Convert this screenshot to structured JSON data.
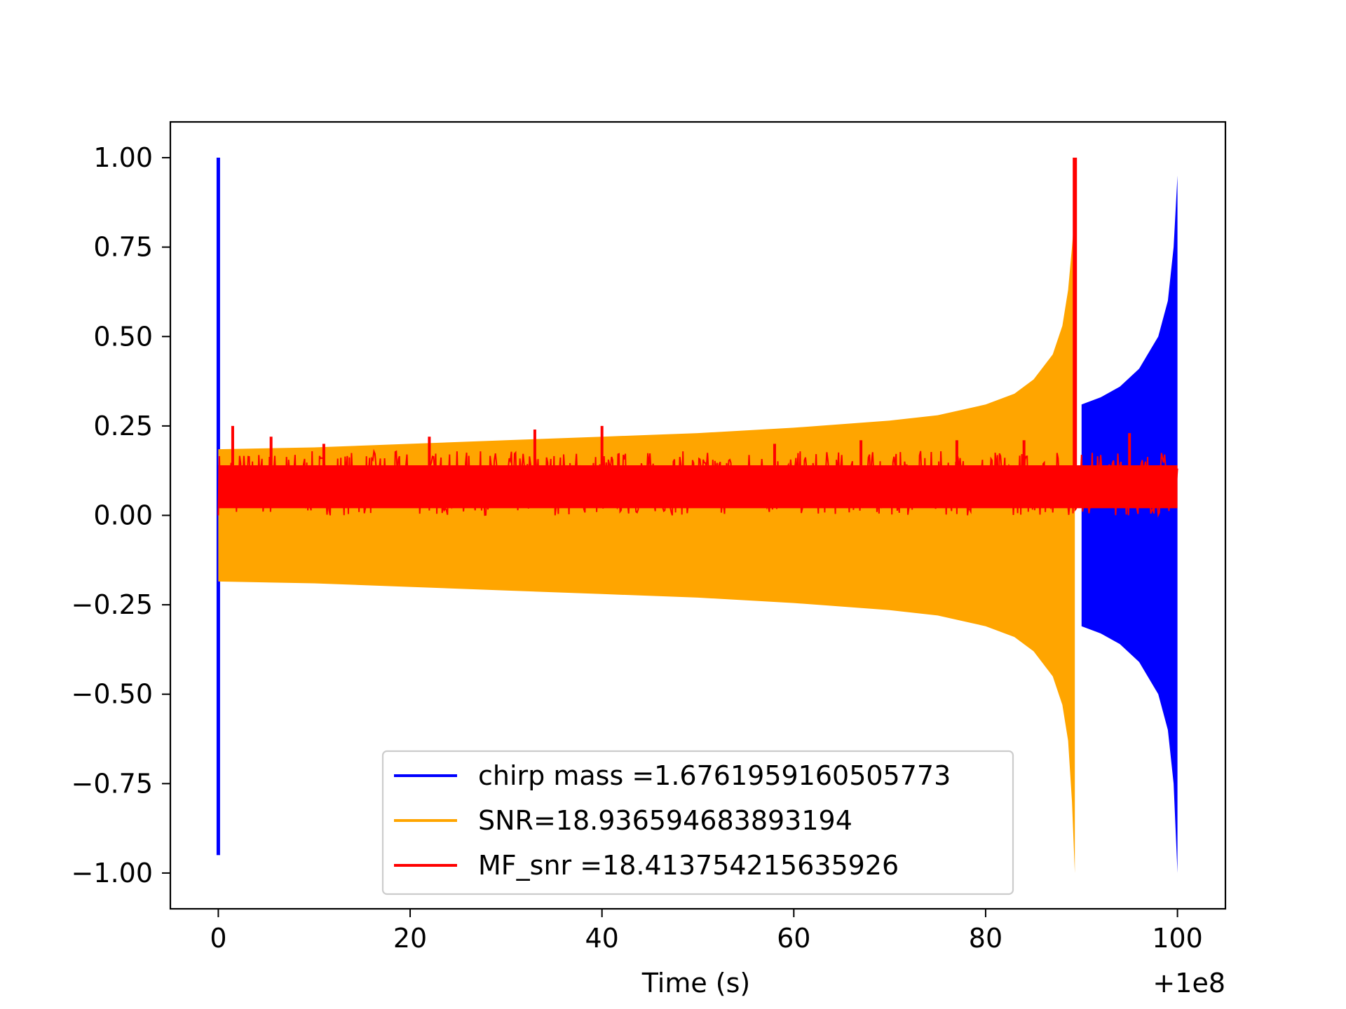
{
  "chart_data": {
    "type": "line",
    "title": "",
    "xlabel": "Time (s)",
    "ylabel": "",
    "x_offset_label": "+1e8",
    "xlim": [
      -5,
      105
    ],
    "ylim": [
      -1.1,
      1.1
    ],
    "xticks": [
      0,
      20,
      40,
      60,
      80,
      100
    ],
    "xtick_labels": [
      "0",
      "20",
      "40",
      "60",
      "80",
      "100"
    ],
    "yticks": [
      1.0,
      0.75,
      0.5,
      0.25,
      0.0,
      -0.25,
      -0.5,
      -0.75,
      -1.0
    ],
    "ytick_labels": [
      "1.00",
      "0.75",
      "0.50",
      "0.25",
      "0.00",
      "−0.25",
      "−0.50",
      "−0.75",
      "−1.00"
    ],
    "grid": false,
    "legend_position": "lower-center",
    "series": [
      {
        "name": "chirp mass =1.6761959160505773",
        "color": "#0000ff",
        "start_spike": {
          "x": 0,
          "max": 1.0,
          "min": -0.95
        },
        "upper_envelope": [
          [
            90.0,
            0.31
          ],
          [
            92.0,
            0.33
          ],
          [
            94.0,
            0.36
          ],
          [
            96.0,
            0.41
          ],
          [
            98.0,
            0.5
          ],
          [
            99.0,
            0.6
          ],
          [
            99.6,
            0.75
          ],
          [
            100.0,
            0.95
          ]
        ],
        "lower_envelope": [
          [
            90.0,
            -0.31
          ],
          [
            92.0,
            -0.33
          ],
          [
            94.0,
            -0.36
          ],
          [
            96.0,
            -0.41
          ],
          [
            98.0,
            -0.5
          ],
          [
            99.0,
            -0.6
          ],
          [
            99.6,
            -0.75
          ],
          [
            100.0,
            -1.0
          ]
        ]
      },
      {
        "name": "SNR=18.936594683893194",
        "color": "#ffa500",
        "upper_envelope": [
          [
            0,
            0.185
          ],
          [
            10,
            0.19
          ],
          [
            20,
            0.2
          ],
          [
            30,
            0.21
          ],
          [
            40,
            0.22
          ],
          [
            50,
            0.23
          ],
          [
            60,
            0.245
          ],
          [
            70,
            0.265
          ],
          [
            75,
            0.28
          ],
          [
            80,
            0.31
          ],
          [
            83,
            0.34
          ],
          [
            85,
            0.38
          ],
          [
            87,
            0.45
          ],
          [
            88,
            0.53
          ],
          [
            88.6,
            0.63
          ],
          [
            89.0,
            0.75
          ],
          [
            89.3,
            0.85
          ]
        ],
        "lower_envelope": [
          [
            0,
            -0.185
          ],
          [
            10,
            -0.19
          ],
          [
            20,
            -0.2
          ],
          [
            30,
            -0.21
          ],
          [
            40,
            -0.22
          ],
          [
            50,
            -0.23
          ],
          [
            60,
            -0.245
          ],
          [
            70,
            -0.265
          ],
          [
            75,
            -0.28
          ],
          [
            80,
            -0.31
          ],
          [
            83,
            -0.34
          ],
          [
            85,
            -0.38
          ],
          [
            87,
            -0.45
          ],
          [
            88,
            -0.53
          ],
          [
            88.6,
            -0.63
          ],
          [
            89.0,
            -0.8
          ],
          [
            89.3,
            -1.0
          ]
        ]
      },
      {
        "name": "MF_snr =18.413754215635926",
        "color": "#ff0000",
        "peak": {
          "x": 89.3,
          "y": 1.0
        },
        "band": [
          0.02,
          0.14
        ],
        "spikes": [
          [
            1.5,
            0.25
          ],
          [
            5.5,
            0.22
          ],
          [
            11,
            0.2
          ],
          [
            22,
            0.22
          ],
          [
            33,
            0.24
          ],
          [
            40,
            0.25
          ],
          [
            58,
            0.2
          ],
          [
            67,
            0.21
          ],
          [
            77,
            0.21
          ],
          [
            84,
            0.21
          ],
          [
            95,
            0.23
          ]
        ],
        "xrange": [
          0,
          100
        ]
      }
    ]
  }
}
